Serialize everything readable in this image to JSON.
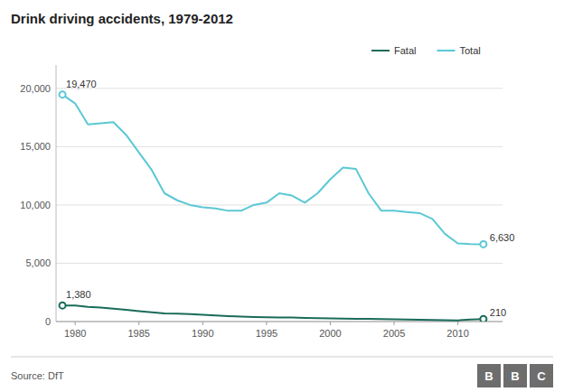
{
  "chart_data": {
    "type": "line",
    "title": "Drink driving accidents, 1979-2012",
    "source": "Source: DfT",
    "logo": [
      "B",
      "B",
      "C"
    ],
    "x": [
      1979,
      1980,
      1981,
      1982,
      1983,
      1984,
      1985,
      1986,
      1987,
      1988,
      1989,
      1990,
      1991,
      1992,
      1993,
      1994,
      1995,
      1996,
      1997,
      1998,
      1999,
      2000,
      2001,
      2002,
      2003,
      2004,
      2005,
      2006,
      2007,
      2008,
      2009,
      2010,
      2011,
      2012
    ],
    "series": [
      {
        "name": "Total",
        "color": "#5bc8d4",
        "values": [
          19470,
          18700,
          16900,
          17000,
          17100,
          16000,
          14500,
          13000,
          11000,
          10400,
          10000,
          9800,
          9700,
          9500,
          9500,
          10000,
          10200,
          11000,
          10800,
          10200,
          11000,
          12200,
          13200,
          13100,
          11000,
          9500,
          9500,
          9400,
          9300,
          8800,
          7500,
          6700,
          6650,
          6630
        ]
      },
      {
        "name": "Fatal",
        "color": "#1a6b5a",
        "values": [
          1380,
          1380,
          1250,
          1200,
          1100,
          1000,
          900,
          800,
          700,
          680,
          640,
          580,
          520,
          460,
          420,
          390,
          370,
          350,
          340,
          310,
          290,
          270,
          250,
          240,
          230,
          210,
          190,
          170,
          150,
          130,
          120,
          100,
          180,
          210
        ]
      }
    ],
    "annotations": [
      {
        "text": "19,470",
        "x": 1979,
        "y": 19470
      },
      {
        "text": "6,630",
        "x": 2012,
        "y": 6630
      },
      {
        "text": "1,380",
        "x": 1979,
        "y": 1380
      },
      {
        "text": "210",
        "x": 2012,
        "y": 210
      }
    ],
    "xlim": [
      1978.5,
      2013.5
    ],
    "xticks": [
      1980,
      1985,
      1990,
      1995,
      2000,
      2005,
      2010
    ],
    "ylim": [
      0,
      22000
    ],
    "yticks": [
      0,
      {
        "value": 5000,
        "label": "5,000"
      },
      {
        "value": 10000,
        "label": "10,000"
      },
      {
        "value": 15000,
        "label": "15,000"
      },
      {
        "value": 20000,
        "label": "20,000"
      }
    ],
    "grid": true,
    "legend": "upper right"
  }
}
